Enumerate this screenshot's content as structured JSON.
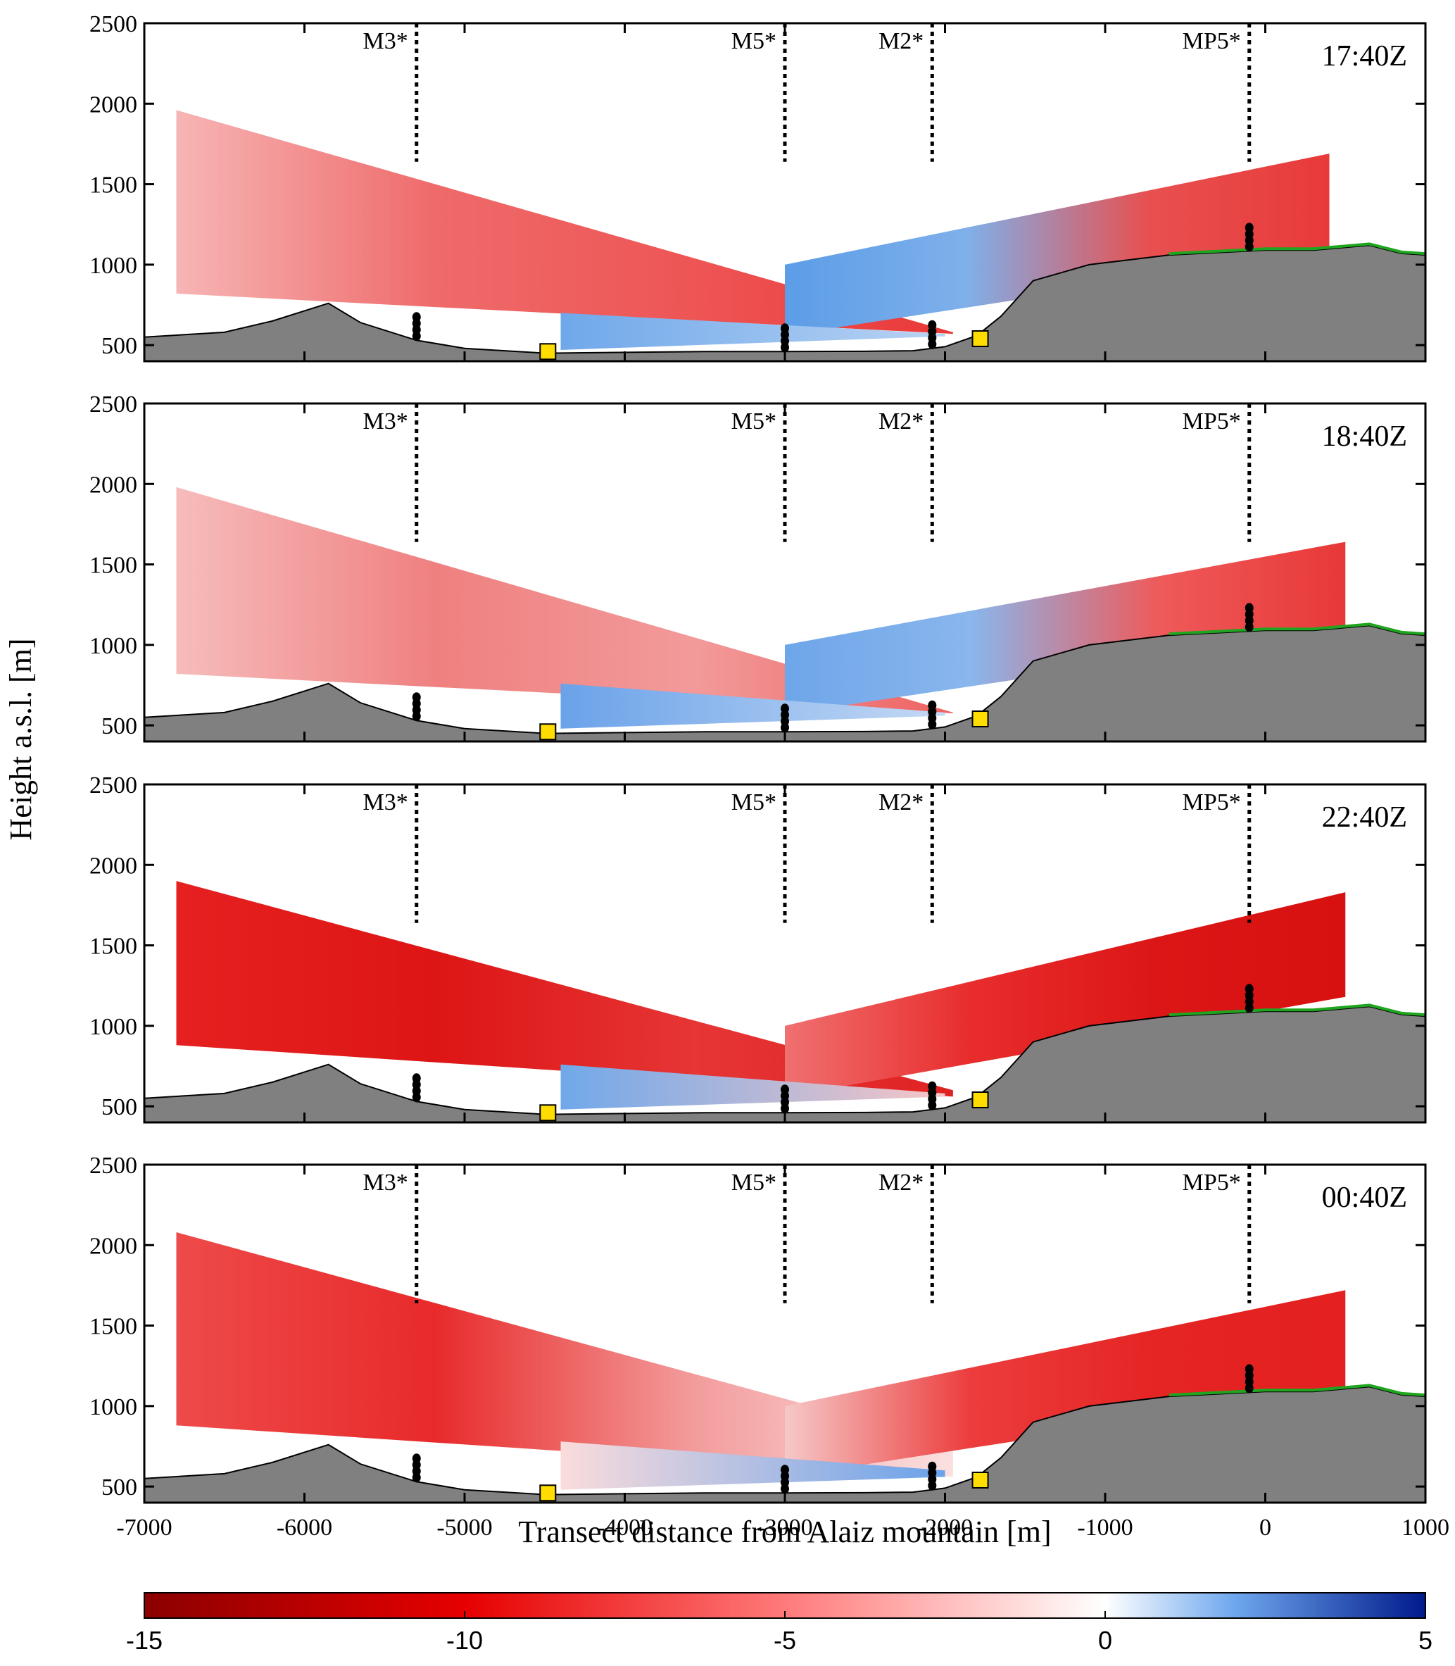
{
  "chart_data": {
    "type": "heatmap",
    "xlabel": "Transect distance from Alaiz mountain [m]",
    "ylabel": "Height a.s.l. [m]",
    "xlim": [
      -7000,
      1000
    ],
    "ylim": [
      400,
      2500
    ],
    "x_ticks": [
      -7000,
      -6000,
      -5000,
      -4000,
      -3000,
      -2000,
      -1000,
      0,
      1000
    ],
    "x_tick_labels": [
      "-7000",
      "-6000",
      "-5000",
      "-4000",
      "-3000",
      "-2000",
      "-1000",
      "0",
      "1000"
    ],
    "y_ticks": [
      500,
      1000,
      1500,
      2000,
      2500
    ],
    "y_tick_labels": [
      "500",
      "1000",
      "1500",
      "2000",
      "2500"
    ],
    "masts": [
      {
        "name": "M3*",
        "x": -5300
      },
      {
        "name": "M5*",
        "x": -3000
      },
      {
        "name": "M2*",
        "x": -2080
      },
      {
        "name": "MP5*",
        "x": -100
      }
    ],
    "lidar_sites": [
      {
        "x": -4480,
        "y": 460
      },
      {
        "x": -1780,
        "y": 540
      }
    ],
    "terrain": {
      "x": [
        -7000,
        -6500,
        -6200,
        -5850,
        -5650,
        -5300,
        -5000,
        -4500,
        -4000,
        -3500,
        -3000,
        -2500,
        -2200,
        -2000,
        -1800,
        -1650,
        -1450,
        -1100,
        -600,
        0,
        300,
        650,
        850,
        1000
      ],
      "y": [
        550,
        580,
        650,
        760,
        640,
        530,
        480,
        450,
        455,
        460,
        460,
        462,
        465,
        490,
        560,
        680,
        900,
        1000,
        1060,
        1090,
        1090,
        1120,
        1070,
        1060
      ]
    },
    "panels": [
      {
        "time": "17:40Z",
        "slices": [
          {
            "name": "west-upper",
            "x0": -6800,
            "x1": -1950,
            "y0_top": 1960,
            "y1_top": 580,
            "y0_bot": 820,
            "y1_bot": 570,
            "colors": [
              "#f7b5b5",
              "#ef6a6a",
              "#ee5555",
              "#ea3838"
            ]
          },
          {
            "name": "east-upper",
            "x0": -3000,
            "x1": 400,
            "y0_top": 1000,
            "y1_top": 1690,
            "y0_bot": 560,
            "y1_bot": 1080,
            "colors": [
              "#5c9de8",
              "#7fb0ea",
              "#e85050",
              "#e83a3a"
            ]
          },
          {
            "name": "west-low",
            "x0": -4400,
            "x1": -2000,
            "y0_top": 700,
            "y1_top": 570,
            "y0_bot": 470,
            "y1_bot": 555,
            "colors": [
              "#6fa8ea",
              "#b9d3f3"
            ]
          }
        ]
      },
      {
        "time": "18:40Z",
        "slices": [
          {
            "name": "west-upper",
            "x0": -6800,
            "x1": -1950,
            "y0_top": 1980,
            "y1_top": 580,
            "y0_bot": 820,
            "y1_bot": 575,
            "colors": [
              "#f6bcbc",
              "#f08080",
              "#f29a9a",
              "#ee6262"
            ]
          },
          {
            "name": "east-upper",
            "x0": -3000,
            "x1": 500,
            "y0_top": 1000,
            "y1_top": 1640,
            "y0_bot": 570,
            "y1_bot": 1090,
            "colors": [
              "#6ea6ea",
              "#8ab6ec",
              "#ef5a5a",
              "#e83838"
            ]
          },
          {
            "name": "west-low",
            "x0": -4400,
            "x1": -2000,
            "y0_top": 760,
            "y1_top": 580,
            "y0_bot": 480,
            "y1_bot": 560,
            "colors": [
              "#6aa2e9",
              "#c4d9f4"
            ]
          }
        ]
      },
      {
        "time": "22:40Z",
        "slices": [
          {
            "name": "west-upper",
            "x0": -6800,
            "x1": -1950,
            "y0_top": 1900,
            "y1_top": 600,
            "y0_bot": 880,
            "y1_bot": 560,
            "colors": [
              "#e62020",
              "#dd1515",
              "#e63535",
              "#e02222"
            ]
          },
          {
            "name": "east-upper",
            "x0": -3000,
            "x1": 500,
            "y0_top": 1000,
            "y1_top": 1830,
            "y0_bot": 560,
            "y1_bot": 1180,
            "colors": [
              "#f07070",
              "#e82c2c",
              "#dc1616",
              "#d71010"
            ]
          },
          {
            "name": "west-low",
            "x0": -4400,
            "x1": -2000,
            "y0_top": 760,
            "y1_top": 580,
            "y0_bot": 480,
            "y1_bot": 560,
            "colors": [
              "#70a8ea",
              "#f6c6c6"
            ]
          }
        ]
      },
      {
        "time": "00:40Z",
        "slices": [
          {
            "name": "west-upper",
            "x0": -6800,
            "x1": -1950,
            "y0_top": 2080,
            "y1_top": 760,
            "y0_bot": 880,
            "y1_bot": 560,
            "colors": [
              "#ee4a4a",
              "#e82a2a",
              "#f39c9c",
              "#fbe0e0"
            ]
          },
          {
            "name": "east-upper",
            "x0": -3000,
            "x1": 500,
            "y0_top": 1000,
            "y1_top": 1720,
            "y0_bot": 560,
            "y1_bot": 1100,
            "colors": [
              "#f6c8c8",
              "#ec3c3c",
              "#e52424",
              "#e42020"
            ]
          },
          {
            "name": "west-low",
            "x0": -4400,
            "x1": -2000,
            "y0_top": 780,
            "y1_top": 600,
            "y0_bot": 480,
            "y1_bot": 560,
            "colors": [
              "#fadcdc",
              "#6aa2e9"
            ]
          }
        ]
      }
    ],
    "colorbar": {
      "min": -15,
      "max": 5,
      "ticks": [
        -15,
        -10,
        -5,
        0,
        5
      ],
      "tick_labels": [
        "-15",
        "-10",
        "-5",
        "0",
        "5"
      ],
      "stops": [
        {
          "value": -15,
          "color": "#8b0000"
        },
        {
          "value": -10,
          "color": "#e60000"
        },
        {
          "value": -5,
          "color": "#ff7a7a"
        },
        {
          "value": 0,
          "color": "#ffffff"
        },
        {
          "value": 2,
          "color": "#6fa8ee"
        },
        {
          "value": 5,
          "color": "#001a8c"
        }
      ]
    }
  },
  "colors": {
    "terrain_fill": "#808080",
    "terrain_green": "#1fa51f",
    "lidar": "#ffdd00",
    "mast": "#000000"
  }
}
